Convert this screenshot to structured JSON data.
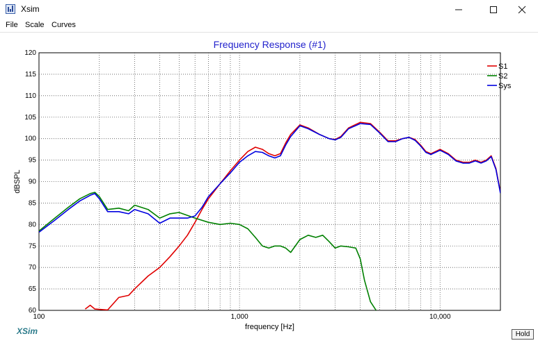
{
  "window": {
    "title": "Xsim",
    "app_icon": "chart-app-icon",
    "controls": {
      "minimize_icon": "minimize-icon",
      "maximize_icon": "maximize-icon",
      "close_icon": "close-icon"
    }
  },
  "menu": {
    "items": [
      "File",
      "Scale",
      "Curves"
    ]
  },
  "footer": {
    "brand": "XSim",
    "hold_label": "Hold"
  },
  "colors": {
    "title": "#2222cc",
    "S1": "#e00000",
    "S2": "#008000",
    "Sys": "#0000e0"
  },
  "chart_data": {
    "type": "line",
    "title": "Frequency Response (#1)",
    "xlabel": "frequency [Hz]",
    "ylabel": "dBSPL",
    "xscale": "log",
    "xlim": [
      100,
      20000
    ],
    "ylim": [
      60,
      120
    ],
    "xticks": [
      {
        "value": 100,
        "label": "100"
      },
      {
        "value": 1000,
        "label": "1,000"
      },
      {
        "value": 10000,
        "label": "10,000"
      }
    ],
    "yticks": [
      60,
      65,
      70,
      75,
      80,
      85,
      90,
      95,
      100,
      105,
      110,
      115,
      120
    ],
    "grid": true,
    "legend": "top-right",
    "series": [
      {
        "name": "S1",
        "color": "#e00000",
        "x": [
          170,
          180,
          190,
          220,
          250,
          280,
          300,
          350,
          400,
          450,
          500,
          550,
          600,
          650,
          700,
          800,
          900,
          1000,
          1100,
          1200,
          1300,
          1400,
          1500,
          1600,
          1700,
          1800,
          2000,
          2200,
          2500,
          2800,
          3000,
          3200,
          3500,
          4000,
          4500,
          5000,
          5500,
          6000,
          6500,
          7000,
          7500,
          8000,
          8500,
          9000,
          10000,
          11000,
          12000,
          13000,
          14000,
          15000,
          16000,
          17000,
          18000,
          19000,
          20000
        ],
        "y": [
          60.3,
          61.2,
          60.3,
          60.1,
          63,
          63.5,
          65,
          68,
          70,
          72.5,
          75,
          77.5,
          80.5,
          83.5,
          86,
          89.5,
          92.5,
          95,
          97,
          98,
          97.5,
          96.5,
          96,
          96.5,
          99,
          101,
          103.2,
          102.5,
          101,
          100,
          99.8,
          100.5,
          102.5,
          103.8,
          103.5,
          101.5,
          99.5,
          99.5,
          100,
          100.3,
          99.8,
          98.5,
          97,
          96.5,
          97.5,
          96.5,
          95,
          94.5,
          94.5,
          95,
          94.5,
          95,
          96,
          93,
          87.5
        ]
      },
      {
        "name": "S2",
        "color": "#008000",
        "x": [
          100,
          120,
          140,
          160,
          180,
          190,
          200,
          220,
          250,
          280,
          300,
          350,
          400,
          450,
          500,
          600,
          700,
          800,
          900,
          1000,
          1100,
          1200,
          1300,
          1400,
          1500,
          1600,
          1700,
          1800,
          2000,
          2200,
          2400,
          2600,
          2800,
          3000,
          3200,
          3500,
          3800,
          4000,
          4200,
          4500,
          4800
        ],
        "y": [
          78.5,
          81.5,
          84,
          86,
          87.2,
          87.5,
          86.5,
          83.5,
          83.8,
          83.2,
          84.5,
          83.5,
          81.5,
          82.5,
          82.8,
          81.5,
          80.5,
          80,
          80.3,
          80,
          79,
          77,
          75,
          74.5,
          75,
          75,
          74.5,
          73.5,
          76.5,
          77.5,
          77,
          77.5,
          76,
          74.5,
          75,
          74.8,
          74.5,
          72,
          67,
          62,
          60
        ]
      },
      {
        "name": "Sys",
        "color": "#0000e0",
        "x": [
          100,
          120,
          140,
          160,
          180,
          190,
          200,
          220,
          250,
          280,
          300,
          350,
          400,
          450,
          500,
          550,
          600,
          650,
          700,
          800,
          900,
          1000,
          1100,
          1200,
          1300,
          1400,
          1500,
          1600,
          1700,
          1800,
          2000,
          2200,
          2500,
          2800,
          3000,
          3200,
          3500,
          4000,
          4500,
          5000,
          5500,
          6000,
          6500,
          7000,
          7500,
          8000,
          8500,
          9000,
          10000,
          11000,
          12000,
          13000,
          14000,
          15000,
          16000,
          17000,
          18000,
          19000,
          20000
        ],
        "y": [
          78.2,
          81,
          83.5,
          85.5,
          86.8,
          87.2,
          86,
          83,
          83,
          82.5,
          83.5,
          82.5,
          80.3,
          81.5,
          81.5,
          81.5,
          82,
          84,
          86.5,
          89.5,
          92,
          94.5,
          96,
          97,
          96.8,
          96,
          95.5,
          96,
          98.5,
          100.5,
          103,
          102.3,
          101,
          100,
          99.7,
          100.3,
          102.3,
          103.5,
          103.3,
          101.3,
          99.3,
          99.3,
          100,
          100.3,
          99.6,
          98.3,
          96.8,
          96.3,
          97.3,
          96.3,
          94.8,
          94.3,
          94.3,
          94.8,
          94.3,
          94.8,
          95.8,
          92.8,
          87.3
        ]
      }
    ]
  }
}
